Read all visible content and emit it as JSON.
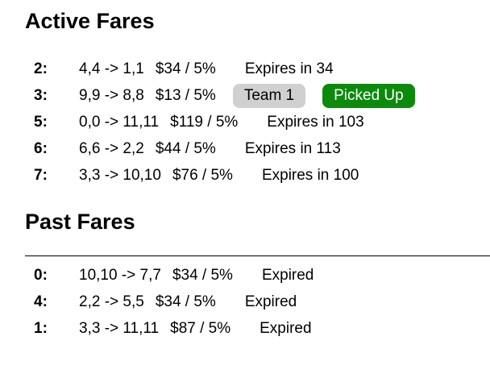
{
  "active_title": "Active Fares",
  "past_title": "Past Fares",
  "colors": {
    "team_badge_bg": "#d0d0d0",
    "picked_up_bg": "#0c8a0c"
  },
  "active_fares": [
    {
      "id": "2:",
      "route": "4,4 -> 1,1",
      "price": "$34 / 5%",
      "status": "Expires in 34"
    },
    {
      "id": "3:",
      "route": "9,9 -> 8,8",
      "price": "$13 / 5%",
      "team": "Team 1",
      "picked_up": "Picked Up"
    },
    {
      "id": "5:",
      "route": "0,0 -> 11,11",
      "price": "$119 / 5%",
      "status": "Expires in 103"
    },
    {
      "id": "6:",
      "route": "6,6 -> 2,2",
      "price": "$44 / 5%",
      "status": "Expires in 113"
    },
    {
      "id": "7:",
      "route": "3,3 -> 10,10",
      "price": "$76 / 5%",
      "status": "Expires in 100"
    }
  ],
  "past_fares": [
    {
      "id": "0:",
      "route": "10,10 -> 7,7",
      "price": "$34 / 5%",
      "status": "Expired"
    },
    {
      "id": "4:",
      "route": "2,2 -> 5,5",
      "price": "$34 / 5%",
      "status": "Expired"
    },
    {
      "id": "1:",
      "route": "3,3 -> 11,11",
      "price": "$87 / 5%",
      "status": "Expired"
    }
  ]
}
